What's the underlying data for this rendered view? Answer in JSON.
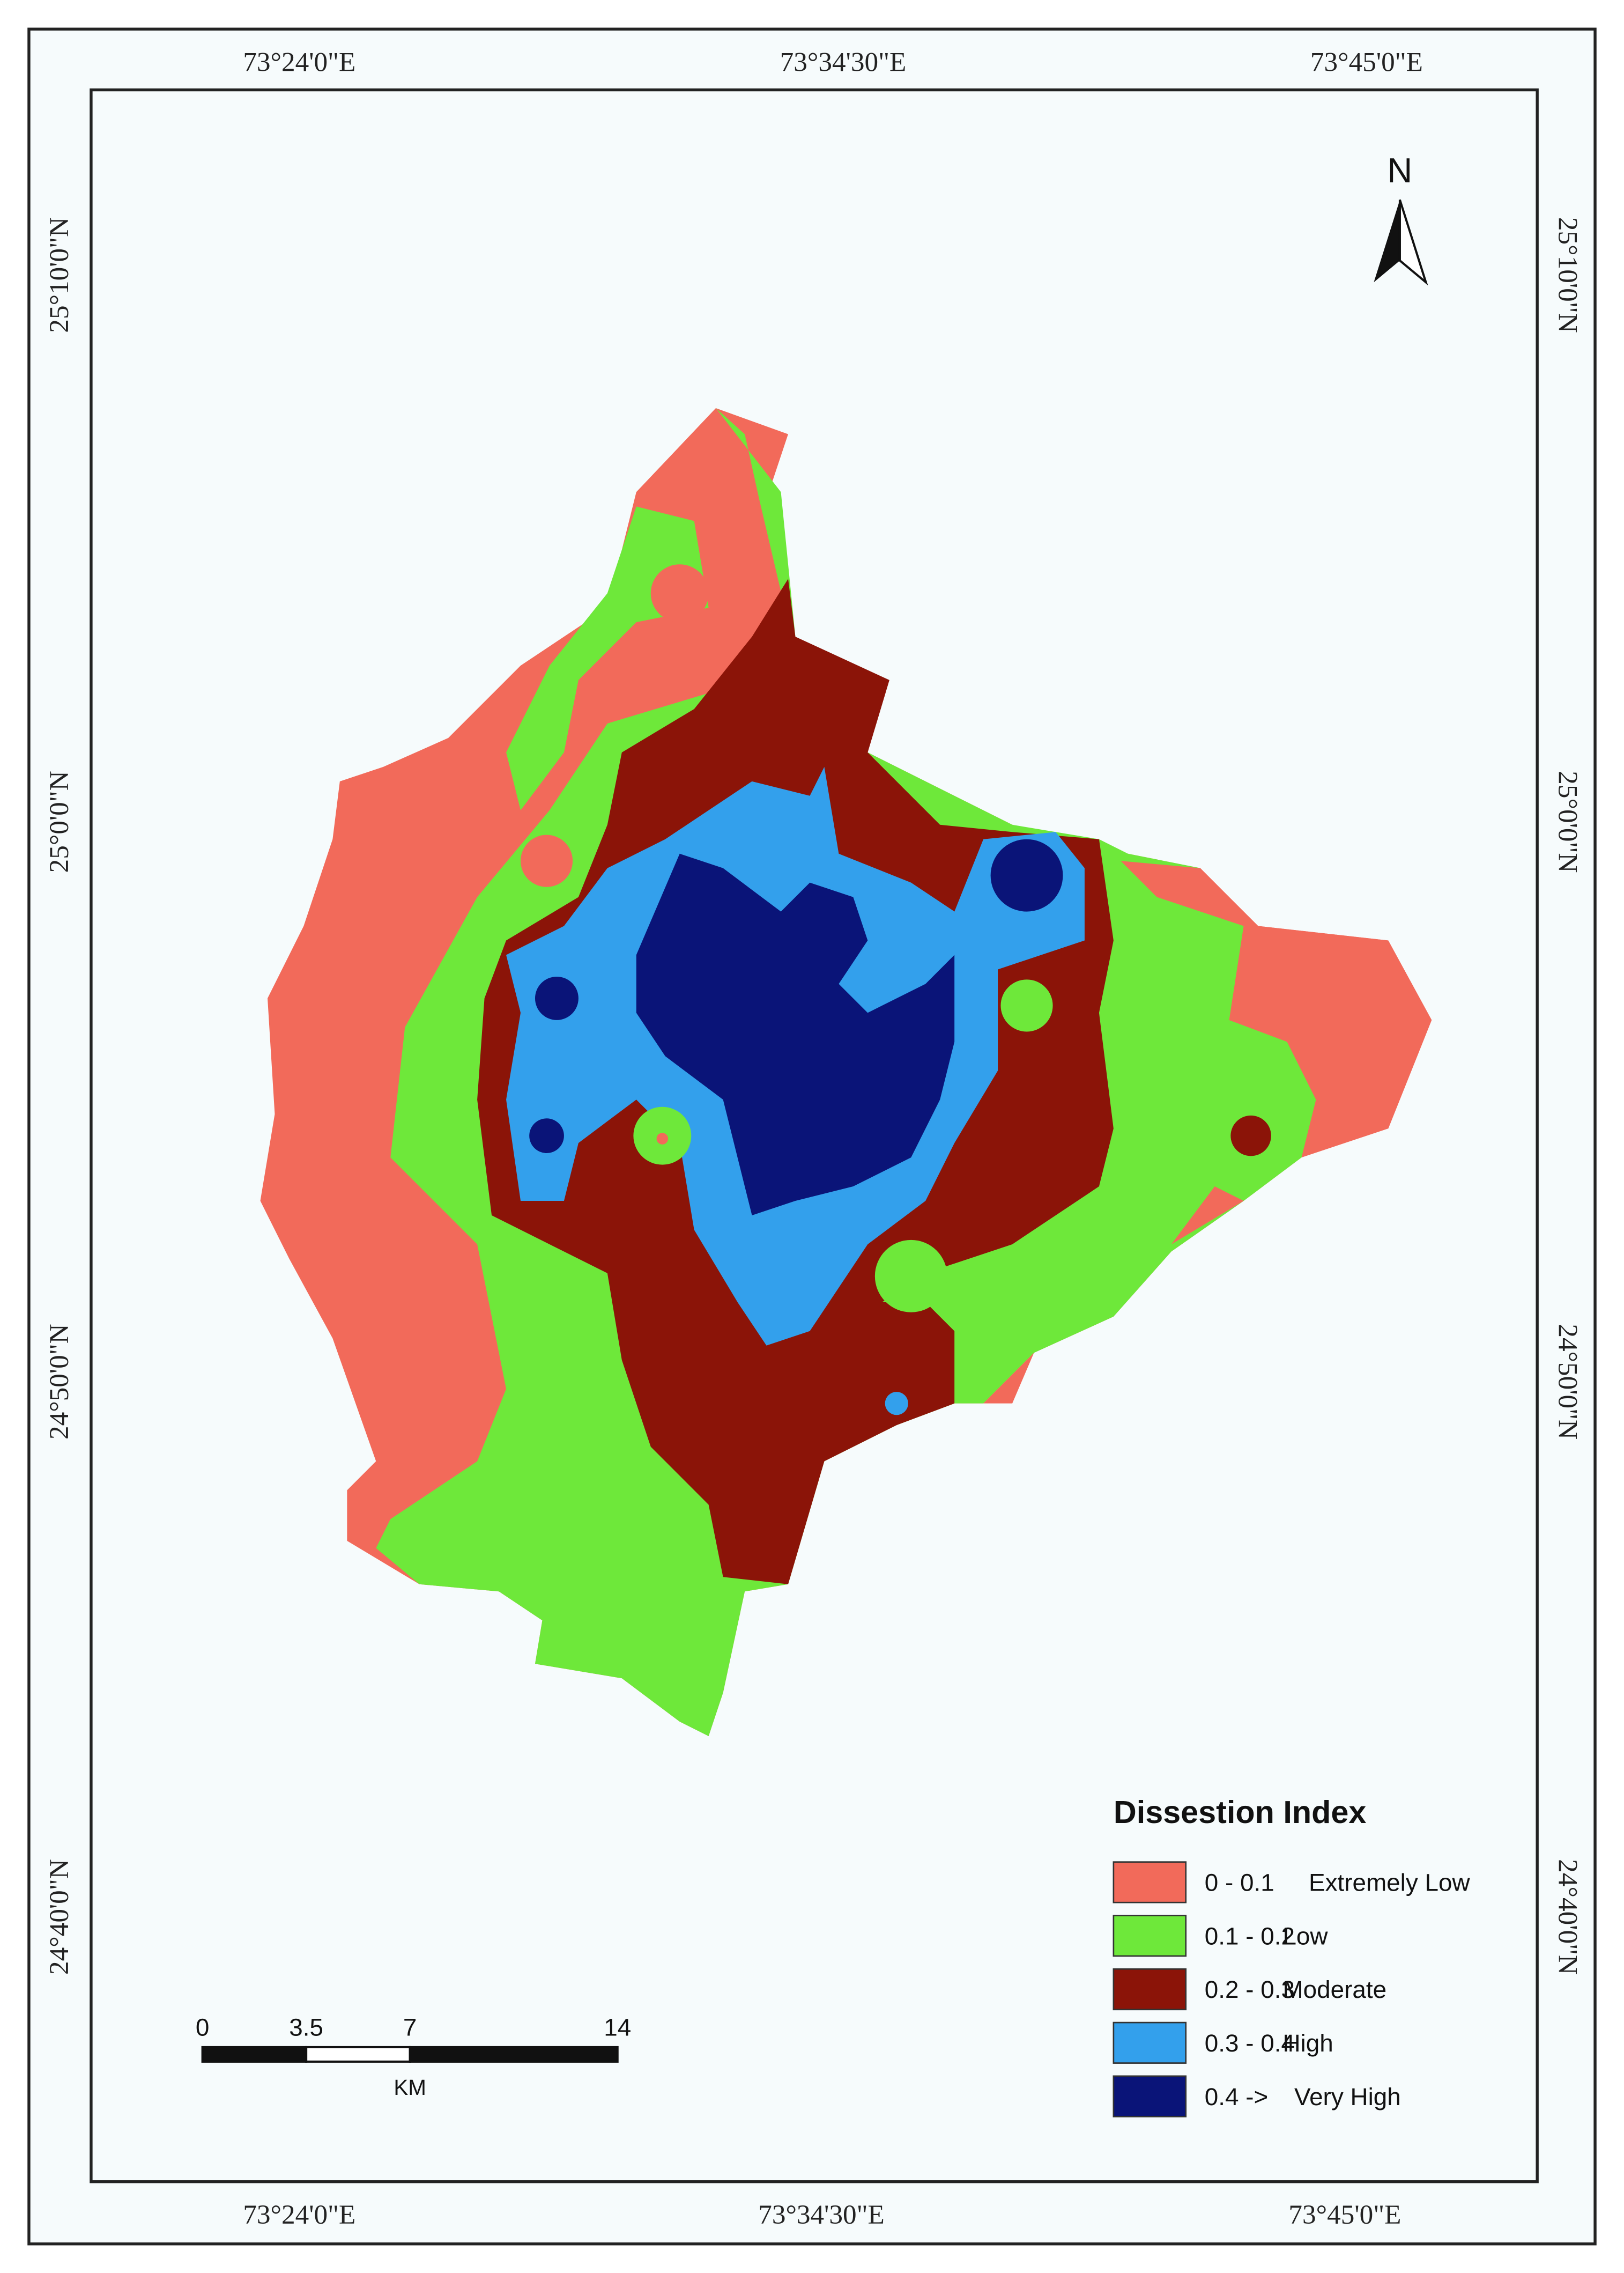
{
  "map": {
    "north": "N",
    "x_labels_top": [
      "73°24'0\"E",
      "73°34'30\"E",
      "73°45'0\"E"
    ],
    "x_labels_bottom": [
      "73°24'0\"E",
      "73°34'30\"E",
      "73°45'0\"E"
    ],
    "y_labels_left": [
      "25°10'0\"N",
      "25°0'0\"N",
      "24°50'0\"N",
      "24°40'0\"N"
    ],
    "y_labels_right": [
      "25°10'0\"N",
      "25°0'0\"N",
      "24°50'0\"N",
      "24°40'0\"N"
    ],
    "legend": {
      "title": "Dissestion Index",
      "items": [
        {
          "range": "0 - 0.1",
          "label": "Extremely Low",
          "color": "#f26a5a"
        },
        {
          "range": "0.1 - 0.2",
          "label": "Low",
          "color": "#6ee83a"
        },
        {
          "range": "0.2 - 0.3",
          "label": "Moderate",
          "color": "#8b1408"
        },
        {
          "range": "0.3 - 0.4",
          "label": "High",
          "color": "#33a0ec"
        },
        {
          "range": "0.4 ->",
          "label": "Very High",
          "color": "#0a1478"
        }
      ]
    },
    "scale_bar": {
      "ticks": [
        0,
        3.5,
        7,
        14
      ],
      "unit": "KM"
    }
  }
}
